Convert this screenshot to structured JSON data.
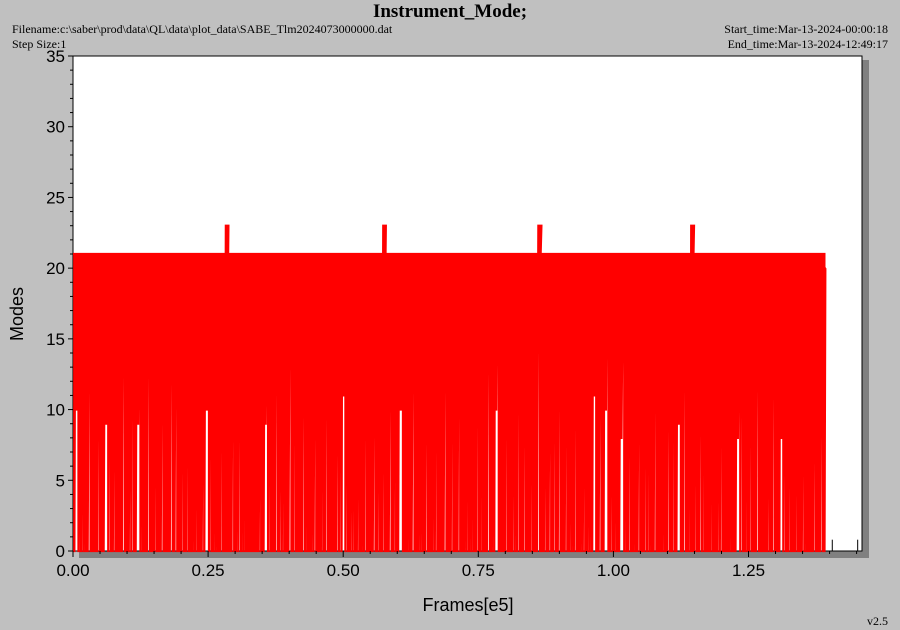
{
  "header": {
    "title": "Instrument_Mode;",
    "filename": "Filename:c:\\saber\\prod\\data\\QL\\data\\plot_data\\SABE_Tlm2024073000000.dat",
    "step_size": "Step Size:1",
    "start_time": "Start_time:Mar-13-2024-00:00:18",
    "end_time": "End_time:Mar-13-2024-12:49:17",
    "version": "v2.5"
  },
  "colors": {
    "background": "#c0c0c0",
    "plot_area": "#ffffff",
    "series": "#ff0000",
    "shadow": "#808080"
  },
  "chart_data": {
    "type": "line",
    "title": "Instrument_Mode;",
    "xlabel": "Frames[e5]",
    "ylabel": "Modes",
    "xlim": [
      0,
      1.46
    ],
    "ylim": [
      0,
      35
    ],
    "x_ticks": [
      0.0,
      0.25,
      0.5,
      0.75,
      1.0,
      1.25
    ],
    "x_tick_labels": [
      "0.00",
      "0.25",
      "0.50",
      "0.75",
      "1.00",
      "1.25"
    ],
    "y_ticks": [
      0,
      5,
      10,
      15,
      20,
      25,
      30,
      35
    ],
    "y_tick_labels": [
      "0",
      "5",
      "10",
      "15",
      "20",
      "25",
      "30",
      "35"
    ],
    "grid": false,
    "series": [
      {
        "color": "#ff0000",
        "data_range": [
          0,
          1.393
        ],
        "base_level": 21,
        "low_level": 0,
        "settled_level": 20,
        "spikes": [
          {
            "x": 0.287,
            "y": 23
          },
          {
            "x": 0.575,
            "y": 23
          },
          {
            "x": 0.862,
            "y": 23
          },
          {
            "x": 1.149,
            "y": 23
          }
        ],
        "mid_drops": [
          {
            "x": 0.007,
            "y": 10
          },
          {
            "x": 0.062,
            "y": 9
          },
          {
            "x": 0.123,
            "y": 9
          },
          {
            "x": 0.247,
            "y": 10
          },
          {
            "x": 0.357,
            "y": 9
          },
          {
            "x": 0.501,
            "y": 11
          },
          {
            "x": 0.605,
            "y": 10
          },
          {
            "x": 0.783,
            "y": 10
          },
          {
            "x": 0.964,
            "y": 11
          },
          {
            "x": 0.988,
            "y": 10
          },
          {
            "x": 1.018,
            "y": 8
          },
          {
            "x": 1.122,
            "y": 9
          },
          {
            "x": 1.232,
            "y": 8
          },
          {
            "x": 1.313,
            "y": 8
          }
        ],
        "isolated_points": [
          {
            "x": 1.405,
            "y": 0.8
          },
          {
            "x": 1.452,
            "y": 0.8
          }
        ]
      }
    ]
  }
}
